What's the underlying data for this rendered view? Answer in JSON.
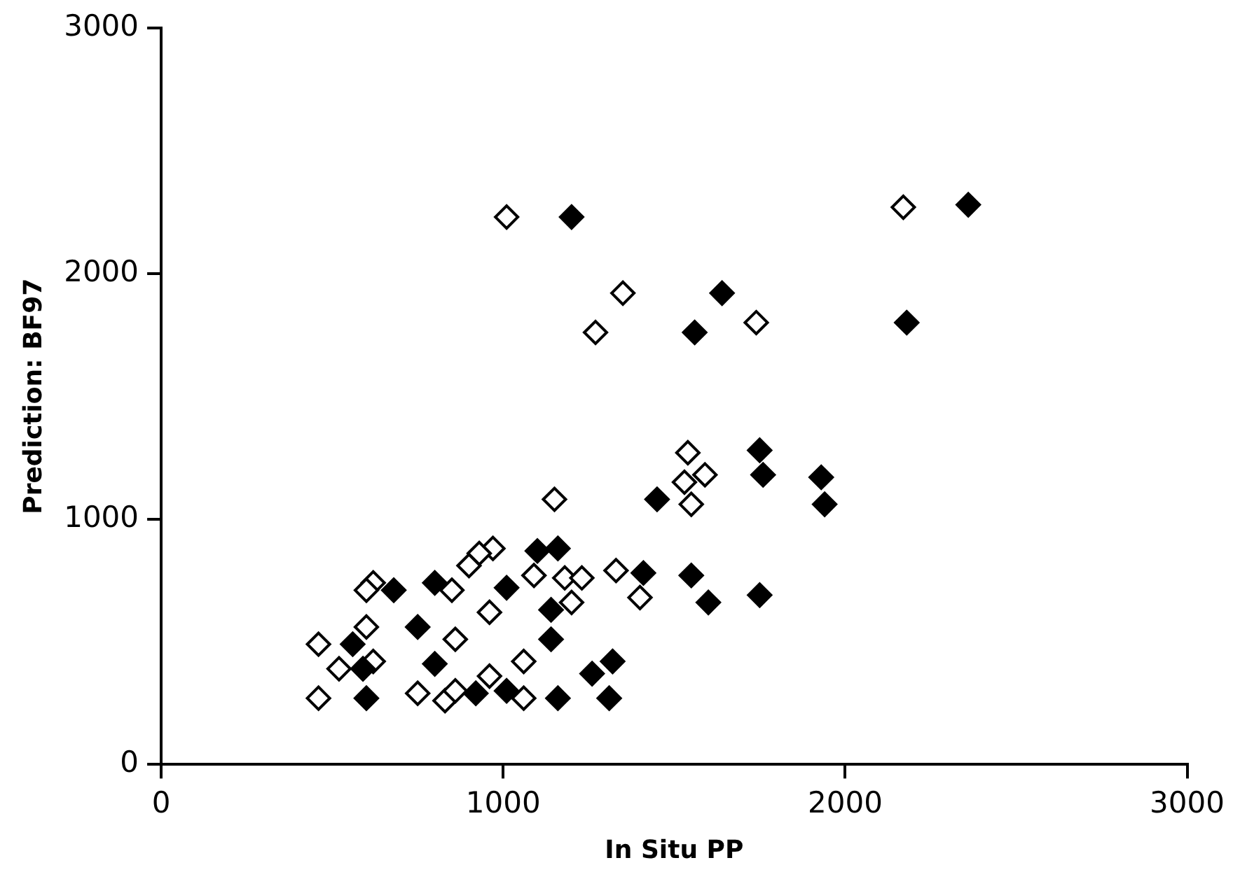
{
  "chart_data": {
    "type": "scatter",
    "xlabel": "In Situ PP",
    "ylabel": "Prediction: BF97",
    "xlim": [
      0,
      3000
    ],
    "ylim": [
      0,
      3000
    ],
    "xticks": [
      0,
      1000,
      2000,
      3000
    ],
    "yticks": [
      0,
      1000,
      2000,
      3000
    ],
    "grid": false,
    "legend": false,
    "marker": "diamond",
    "series": [
      {
        "color": "#000000",
        "x": [
          1450,
          1100,
          1160,
          680,
          800,
          1010,
          1410,
          1140,
          750,
          560,
          1140,
          590,
          800,
          1260,
          1320,
          920,
          1010,
          1160,
          1310,
          600,
          1750,
          1760,
          1930,
          1940,
          1550,
          1600,
          1750,
          1200,
          1640,
          1560,
          2180,
          2360
        ],
        "values": [
          1080,
          870,
          880,
          710,
          740,
          720,
          780,
          630,
          560,
          490,
          510,
          390,
          410,
          370,
          420,
          290,
          300,
          270,
          270,
          270,
          1280,
          1180,
          1170,
          1060,
          770,
          660,
          690,
          2230,
          1920,
          1760,
          1800,
          2280
        ]
      },
      {
        "color": "#ffffff",
        "x": [
          1150,
          970,
          930,
          900,
          620,
          600,
          850,
          1090,
          1180,
          1230,
          1330,
          1400,
          1200,
          960,
          600,
          460,
          860,
          520,
          620,
          1060,
          960,
          750,
          830,
          860,
          1060,
          460,
          1540,
          1530,
          1590,
          1550,
          1010,
          1350,
          1270,
          1740,
          2170
        ],
        "values": [
          1080,
          880,
          860,
          810,
          740,
          710,
          710,
          770,
          760,
          760,
          790,
          680,
          660,
          620,
          560,
          490,
          510,
          390,
          420,
          420,
          360,
          290,
          260,
          300,
          270,
          270,
          1270,
          1150,
          1180,
          1060,
          2230,
          1920,
          1760,
          1800,
          2270
        ]
      }
    ]
  }
}
